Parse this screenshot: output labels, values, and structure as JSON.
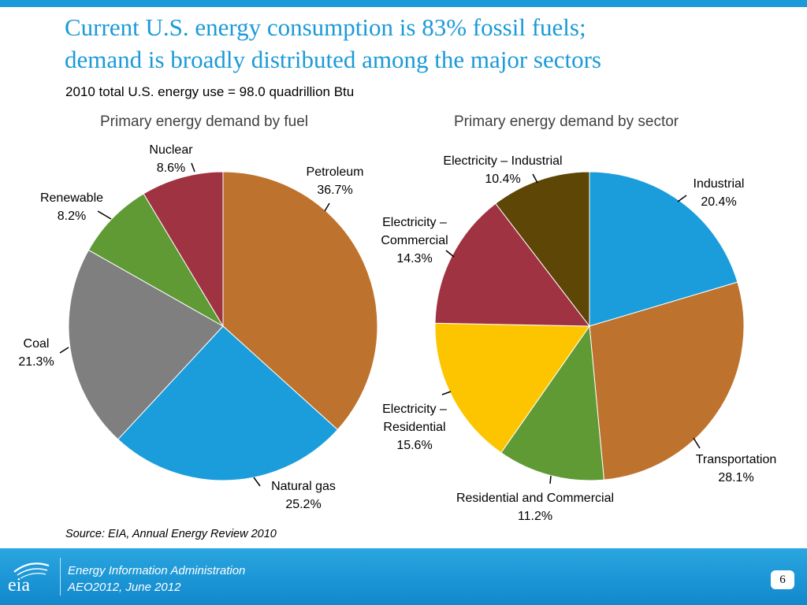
{
  "title": {
    "line1": "Current U.S. energy consumption is 83% fossil fuels;",
    "line2": "demand is broadly distributed among the major sectors"
  },
  "subtitle": "2010 total U.S. energy use = 98.0 quadrillion Btu",
  "source": "Source:  EIA, Annual Energy Review 2010",
  "footer": {
    "line1": "Energy Information Administration",
    "line2": "AEO2012, June 2012",
    "logo_text": "eia",
    "page_number": "6"
  },
  "colors": {
    "title": "#1a9ad8",
    "footer": "#1a9ad8"
  },
  "chart_data": [
    {
      "type": "pie",
      "title": "Primary energy demand by fuel",
      "start": "12 o'clock, clockwise",
      "slices": [
        {
          "label": "Petroleum",
          "value": 36.7,
          "display": "36.7%",
          "color": "#bd732d"
        },
        {
          "label": "Natural gas",
          "value": 25.2,
          "display": "25.2%",
          "color": "#1b9ddb"
        },
        {
          "label": "Coal",
          "value": 21.3,
          "display": "21.3%",
          "color": "#7f7f7f"
        },
        {
          "label": "Renewable",
          "value": 8.2,
          "display": "8.2%",
          "color": "#5f9a35"
        },
        {
          "label": "Nuclear",
          "value": 8.6,
          "display": "8.6%",
          "color": "#a03341"
        }
      ]
    },
    {
      "type": "pie",
      "title": "Primary energy demand by sector",
      "start": "12 o'clock, clockwise",
      "slices": [
        {
          "label": "Industrial",
          "value": 20.4,
          "display": "20.4%",
          "color": "#1b9ddb"
        },
        {
          "label": "Transportation",
          "value": 28.1,
          "display": "28.1%",
          "color": "#bd732d"
        },
        {
          "label": "Residential and Commercial",
          "value": 11.2,
          "display": "11.2%",
          "color": "#5f9a35"
        },
        {
          "label": "Electricity – Residential",
          "value": 15.6,
          "display": "15.6%",
          "color": "#fdc500"
        },
        {
          "label": "Electricity – Commercial",
          "value": 14.3,
          "display": "14.3%",
          "color": "#a03341"
        },
        {
          "label": "Electricity – Industrial",
          "value": 10.4,
          "display": "10.4%",
          "color": "#5d4606"
        }
      ]
    }
  ]
}
